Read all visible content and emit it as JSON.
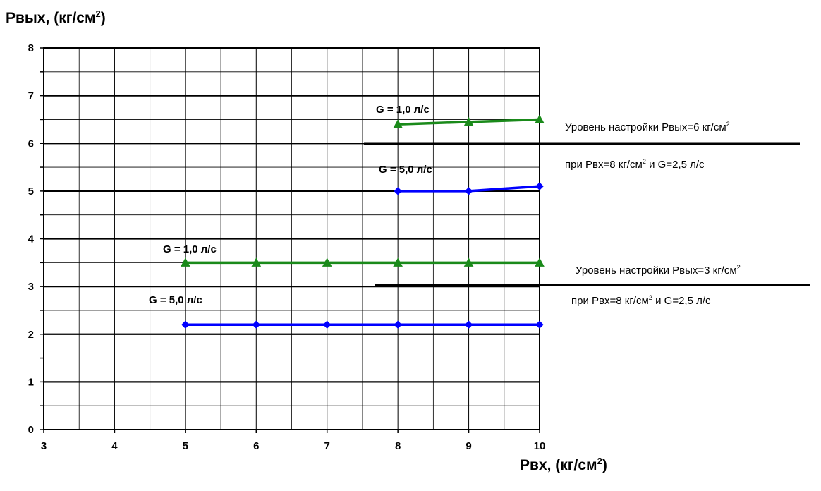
{
  "chart_data": {
    "type": "line",
    "ylabel": {
      "text": "Рвых, (кг/см",
      "sup": "2",
      "tail": ")"
    },
    "xlabel": {
      "text": "Рвх, (кг/см",
      "sup": "2",
      "tail": ")"
    },
    "xlim": [
      3,
      10
    ],
    "ylim": [
      0,
      8
    ],
    "x_ticks": [
      "3",
      "4",
      "5",
      "6",
      "7",
      "8",
      "9",
      "10"
    ],
    "y_ticks": [
      "0",
      "1",
      "2",
      "3",
      "4",
      "5",
      "6",
      "7",
      "8"
    ],
    "grid": true,
    "series": [
      {
        "name": "G = 1,0 л/с",
        "color": "#1a8a1a",
        "marker": "triangle",
        "x": [
          8,
          9,
          10
        ],
        "y": [
          6.4,
          6.45,
          6.5
        ]
      },
      {
        "name": "G = 5,0 л/с",
        "color": "#0000ff",
        "marker": "diamond",
        "x": [
          8,
          9,
          10
        ],
        "y": [
          5.0,
          5.0,
          5.1
        ]
      },
      {
        "name": "G = 1,0 л/с",
        "color": "#1a8a1a",
        "marker": "triangle",
        "x": [
          5,
          6,
          7,
          8,
          9,
          10
        ],
        "y": [
          3.5,
          3.5,
          3.5,
          3.5,
          3.5,
          3.5
        ]
      },
      {
        "name": "G = 5,0 л/с",
        "color": "#0000ff",
        "marker": "diamond",
        "x": [
          5,
          6,
          7,
          8,
          9,
          10
        ],
        "y": [
          2.2,
          2.2,
          2.2,
          2.2,
          2.2,
          2.2
        ]
      }
    ],
    "reference_lines": [
      {
        "y": 6,
        "line1": {
          "text": "Уровень настройки Рвых=6 кг/см",
          "sup": "2"
        },
        "line2": {
          "pre": "при Рвх=8 кг/см",
          "sup": "2",
          "post": " и G=2,5 л/с"
        }
      },
      {
        "y": 3,
        "line1": {
          "text": "Уровень настройки Рвых=3 кг/см",
          "sup": "2"
        },
        "line2": {
          "pre": "при Рвх=8 кг/см",
          "sup": "2",
          "post": " и G=2,5 л/с"
        }
      }
    ]
  }
}
